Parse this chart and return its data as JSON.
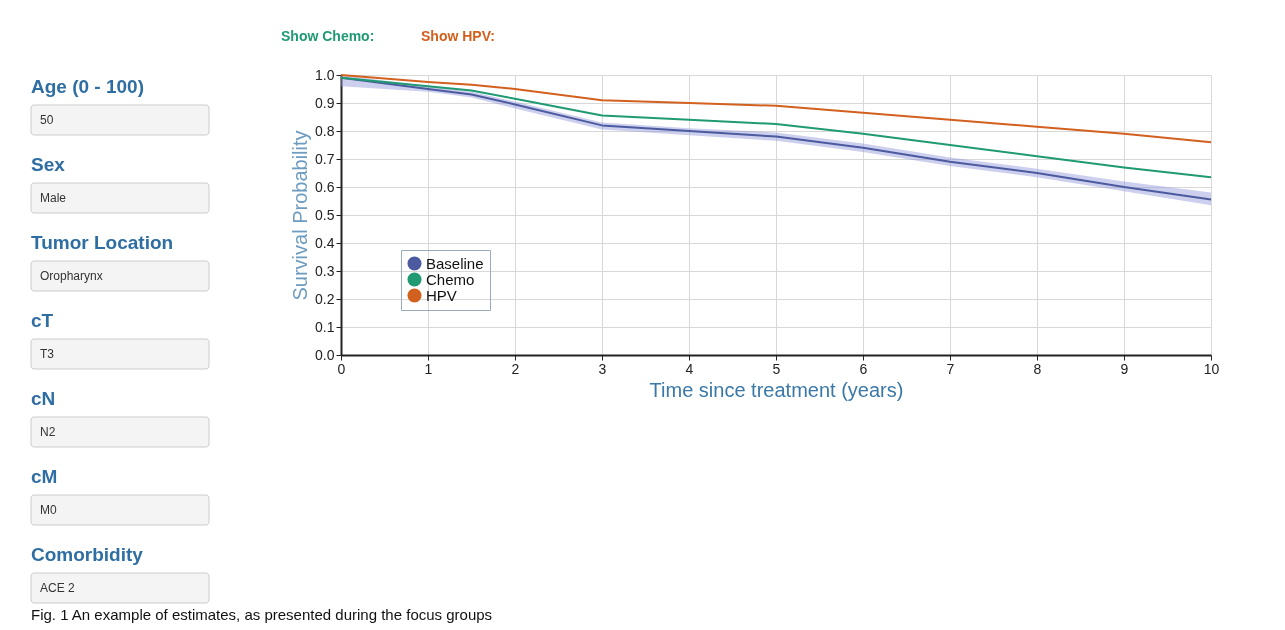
{
  "chart_data": [
    {
      "type": "other",
      "annotations": [
        "Age (0 - 100)",
        "50",
        "Sex",
        "Male",
        "Tumor Location",
        "Oropharynx",
        "cT",
        "T3",
        "cN",
        "N2",
        "cM",
        "M0",
        "Comorbidity",
        "ACE 2"
      ]
    },
    {
      "type": "line",
      "xlabel": "Time since treatment (years)",
      "ylabel": "Survival Probability",
      "x": [
        0,
        1,
        1.5,
        2,
        3,
        4,
        5,
        6,
        7,
        8,
        9,
        10
      ],
      "series": [
        {
          "name": "Baseline",
          "color": "#4c5b9f",
          "values": [
            0.99,
            0.95,
            0.93,
            0.895,
            0.82,
            0.8,
            0.78,
            0.74,
            0.69,
            0.65,
            0.6,
            0.555
          ],
          "lower": [
            0.96,
            0.94,
            0.92,
            0.88,
            0.805,
            0.785,
            0.765,
            0.725,
            0.675,
            0.635,
            0.585,
            0.535
          ],
          "upper": [
            1.0,
            0.96,
            0.94,
            0.905,
            0.83,
            0.81,
            0.795,
            0.755,
            0.705,
            0.665,
            0.62,
            0.58
          ]
        },
        {
          "name": "Chemo",
          "color": "#1f9a72",
          "values": [
            0.99,
            0.96,
            0.945,
            0.915,
            0.855,
            0.84,
            0.825,
            0.79,
            0.75,
            0.71,
            0.67,
            0.635
          ]
        },
        {
          "name": "HPV",
          "color": "#d2601e",
          "values": [
            1.0,
            0.975,
            0.965,
            0.95,
            0.91,
            0.9,
            0.89,
            0.865,
            0.84,
            0.815,
            0.79,
            0.76
          ]
        }
      ],
      "xlim": [
        0,
        10
      ],
      "xticks": [
        0,
        1,
        2,
        3,
        4,
        5,
        6,
        7,
        8,
        9,
        10
      ],
      "ylim": [
        0,
        1
      ],
      "yticks": [
        {
          "value": 0,
          "label": "0.0"
        },
        0.1,
        0.2,
        0.3,
        0.4,
        0.5,
        0.6,
        0.7,
        0.8,
        0.9,
        {
          "value": 1,
          "label": "1.0"
        }
      ],
      "grid": true,
      "legend": "bottom left",
      "marker": "none",
      "line_style": "solid",
      "annotations": [
        "Show Chemo:",
        "Show HPV:",
        "Fig. 1 An example of estimates, as presented during the focus groups"
      ]
    }
  ]
}
